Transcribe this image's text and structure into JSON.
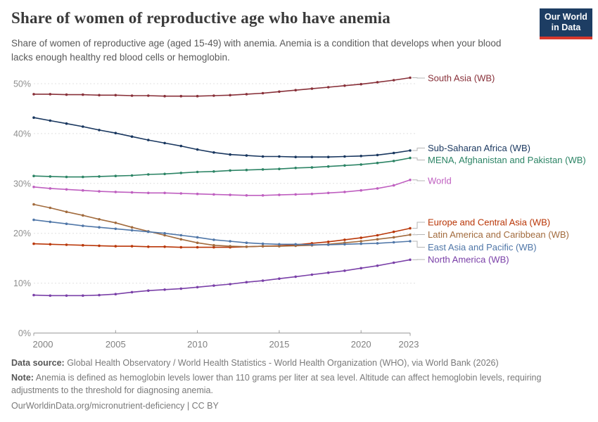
{
  "header": {
    "title": "Share of women of reproductive age who have anemia",
    "subtitle": "Share of women of reproductive age (aged 15-49) with anemia. Anemia is a condition that develops when your blood lacks enough healthy red blood cells or hemoglobin.",
    "logo": {
      "line1": "Our World",
      "line2": "in Data"
    }
  },
  "chart_data": {
    "type": "line",
    "title": "Share of women of reproductive age who have anemia",
    "x": [
      2000,
      2001,
      2002,
      2003,
      2004,
      2005,
      2006,
      2007,
      2008,
      2009,
      2010,
      2011,
      2012,
      2013,
      2014,
      2015,
      2016,
      2017,
      2018,
      2019,
      2020,
      2021,
      2022,
      2023
    ],
    "x_ticks": [
      2000,
      2005,
      2010,
      2015,
      2020,
      2023
    ],
    "y_ticks": [
      0,
      10,
      20,
      30,
      40,
      50
    ],
    "y_tick_suffix": "%",
    "ylim": [
      0,
      50
    ],
    "grid": "horizontal-dashed",
    "legend_position": "right-of-lines",
    "series": [
      {
        "key": "south-asia",
        "name": "South Asia (WB)",
        "color": "#883039",
        "values": [
          47.9,
          47.9,
          47.8,
          47.8,
          47.7,
          47.7,
          47.6,
          47.6,
          47.5,
          47.5,
          47.5,
          47.6,
          47.7,
          47.9,
          48.1,
          48.4,
          48.7,
          49.0,
          49.3,
          49.6,
          49.9,
          50.3,
          50.7,
          51.2
        ]
      },
      {
        "key": "sub-saharan-africa",
        "name": "Sub-Saharan Africa (WB)",
        "color": "#19375f",
        "values": [
          43.2,
          42.6,
          42.0,
          41.4,
          40.7,
          40.1,
          39.4,
          38.7,
          38.1,
          37.5,
          36.8,
          36.2,
          35.8,
          35.6,
          35.4,
          35.4,
          35.3,
          35.3,
          35.3,
          35.4,
          35.5,
          35.7,
          36.1,
          36.6
        ]
      },
      {
        "key": "mena",
        "name": "MENA, Afghanistan and Pakistan (WB)",
        "color": "#2c8465",
        "values": [
          31.5,
          31.4,
          31.3,
          31.3,
          31.4,
          31.5,
          31.6,
          31.8,
          31.9,
          32.1,
          32.3,
          32.4,
          32.6,
          32.7,
          32.8,
          32.9,
          33.1,
          33.2,
          33.4,
          33.6,
          33.8,
          34.1,
          34.5,
          35.1
        ]
      },
      {
        "key": "world",
        "name": "World",
        "color": "#bf5fc0",
        "values": [
          29.3,
          29.0,
          28.8,
          28.6,
          28.4,
          28.3,
          28.2,
          28.1,
          28.1,
          28.0,
          27.9,
          27.8,
          27.7,
          27.6,
          27.6,
          27.7,
          27.8,
          27.9,
          28.1,
          28.3,
          28.6,
          29.0,
          29.6,
          30.7
        ]
      },
      {
        "key": "europe-central-asia",
        "name": "Europe and Central Asia (WB)",
        "color": "#b93607",
        "values": [
          17.9,
          17.8,
          17.7,
          17.6,
          17.5,
          17.4,
          17.4,
          17.3,
          17.3,
          17.2,
          17.2,
          17.2,
          17.2,
          17.3,
          17.4,
          17.5,
          17.7,
          18.0,
          18.3,
          18.7,
          19.1,
          19.6,
          20.3,
          21.0
        ]
      },
      {
        "key": "latin-america",
        "name": "Latin America and Caribbean (WB)",
        "color": "#a26b3d",
        "values": [
          25.8,
          25.1,
          24.3,
          23.6,
          22.8,
          22.1,
          21.2,
          20.4,
          19.6,
          18.8,
          18.1,
          17.6,
          17.4,
          17.3,
          17.4,
          17.4,
          17.5,
          17.6,
          17.8,
          18.1,
          18.4,
          18.8,
          19.2,
          19.7
        ]
      },
      {
        "key": "east-asia-pacific",
        "name": "East Asia and Pacific (WB)",
        "color": "#5077a8",
        "values": [
          22.7,
          22.3,
          21.9,
          21.5,
          21.2,
          20.9,
          20.6,
          20.3,
          20.0,
          19.6,
          19.2,
          18.7,
          18.4,
          18.1,
          17.9,
          17.8,
          17.8,
          17.7,
          17.7,
          17.8,
          17.9,
          18.0,
          18.2,
          18.4
        ]
      },
      {
        "key": "north-america",
        "name": "North America (WB)",
        "color": "#7a40a8",
        "values": [
          7.6,
          7.5,
          7.5,
          7.5,
          7.6,
          7.8,
          8.2,
          8.5,
          8.7,
          8.9,
          9.2,
          9.5,
          9.8,
          10.2,
          10.5,
          10.9,
          11.3,
          11.7,
          12.1,
          12.5,
          13.0,
          13.5,
          14.1,
          14.7
        ]
      }
    ]
  },
  "footer": {
    "datasource_label": "Data source:",
    "datasource_text": " Global Health Observatory / World Health Statistics - World Health Organization (WHO), via World Bank (2026)",
    "note_label": "Note:",
    "note_text": " Anemia is defined as hemoglobin levels lower than 110 grams per liter at sea level. Altitude can affect hemoglobin levels, requiring adjustments to the threshold for diagnosing anemia.",
    "link": "OurWorldinData.org/micronutrient-deficiency | CC BY"
  }
}
